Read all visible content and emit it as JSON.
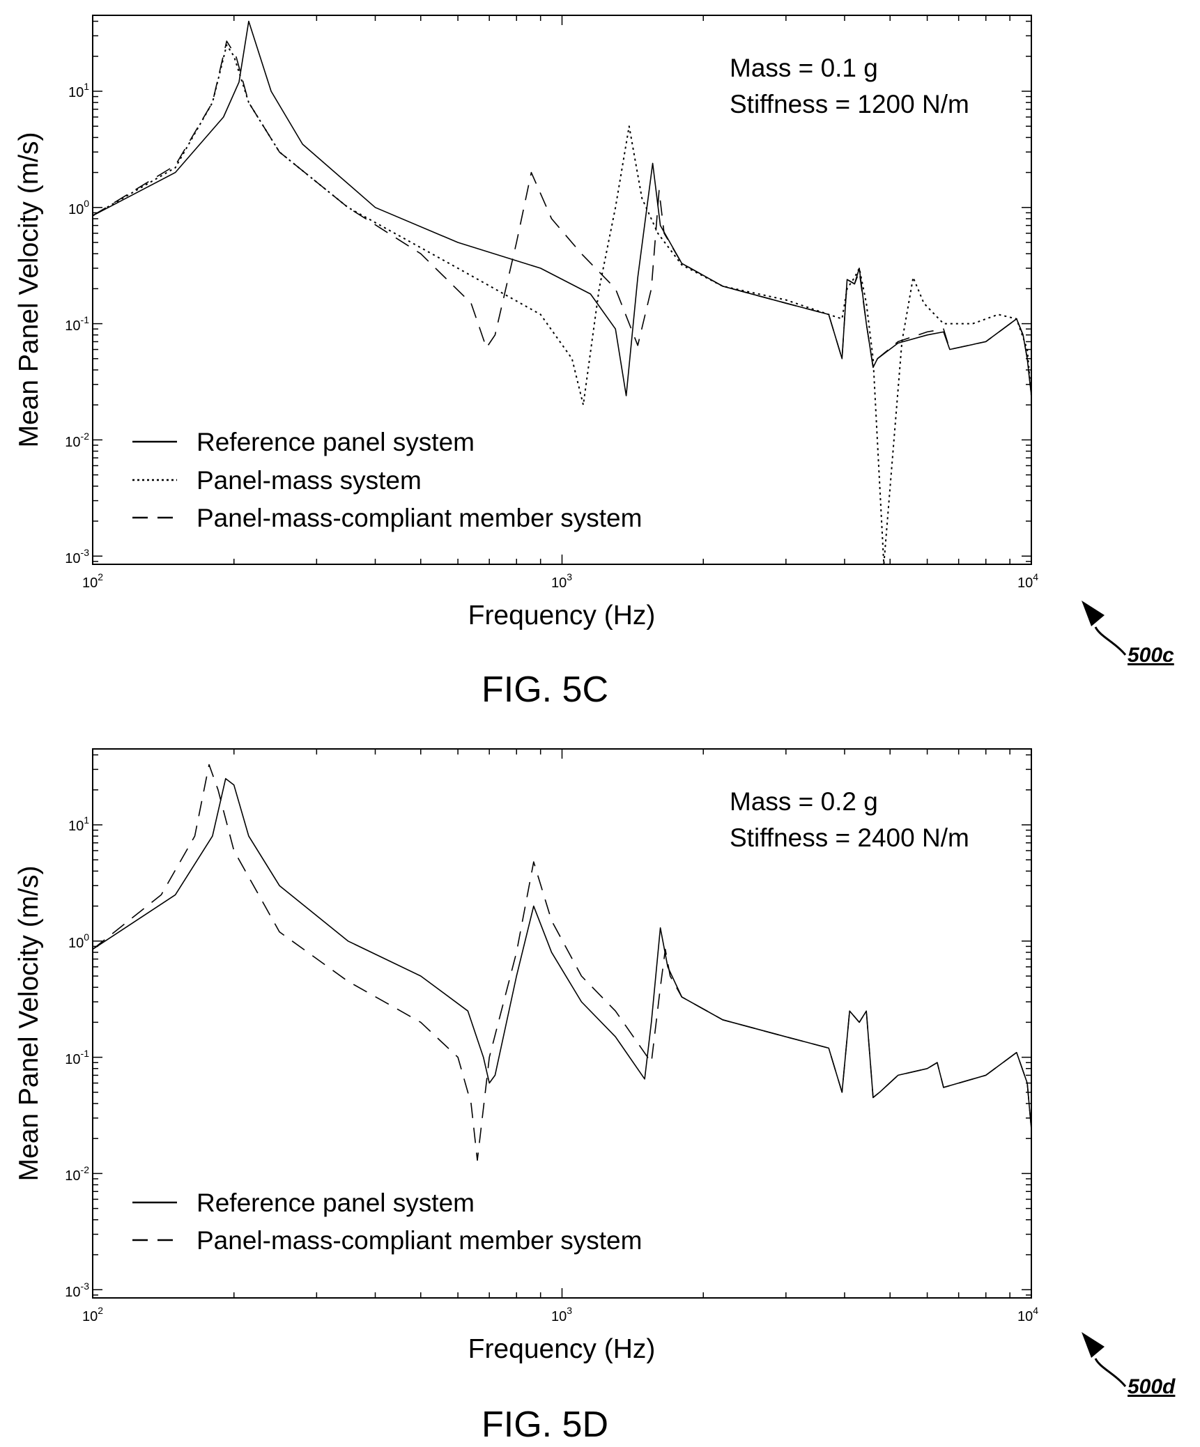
{
  "figures": [
    {
      "caption": "FIG. 5C",
      "reference": "500c",
      "annotation": [
        "Mass = 0.1 g",
        "Stiffness = 1200 N/m"
      ],
      "xlabel": "Frequency (Hz)",
      "ylabel": "Mean Panel Velocity (m/s)",
      "legend": [
        "Reference panel system",
        "Panel-mass system",
        "Panel-mass-compliant member system"
      ]
    },
    {
      "caption": "FIG. 5D",
      "reference": "500d",
      "annotation": [
        "Mass = 0.2 g",
        "Stiffness = 2400 N/m"
      ],
      "xlabel": "Frequency (Hz)",
      "ylabel": "Mean Panel Velocity (m/s)",
      "legend": [
        "Reference panel system",
        "Panel-mass-compliant member system"
      ]
    }
  ],
  "chart_data": [
    {
      "type": "line",
      "title": "",
      "xlabel": "Frequency (Hz)",
      "ylabel": "Mean Panel Velocity (m/s)",
      "xscale": "log",
      "yscale": "log",
      "xlim": [
        100,
        10000
      ],
      "ylim": [
        0.00085,
        45
      ],
      "xticks": [
        {
          "base": "10",
          "exp": "2"
        },
        {
          "base": "10",
          "exp": "3"
        },
        {
          "base": "10",
          "exp": "4"
        }
      ],
      "yticks": [
        {
          "base": "10",
          "exp": "-3"
        },
        {
          "base": "10",
          "exp": "-2"
        },
        {
          "base": "10",
          "exp": "-1"
        },
        {
          "base": "10",
          "exp": "0"
        },
        {
          "base": "10",
          "exp": "1"
        }
      ],
      "grid": false,
      "legend_position": "bottom-left",
      "series": [
        {
          "name": "Reference panel system",
          "style": "solid",
          "x": [
            100,
            150,
            190,
            205,
            215,
            240,
            280,
            400,
            600,
            900,
            1150,
            1300,
            1370,
            1450,
            1560,
            1620,
            1800,
            2200,
            3000,
            3700,
            3950,
            4050,
            4200,
            4300,
            4450,
            4600,
            4700,
            5200,
            6000,
            6500,
            6700,
            8000,
            9300,
            9600,
            9800,
            10000
          ],
          "y": [
            0.85,
            2.0,
            6.0,
            12.0,
            40.0,
            10.0,
            3.5,
            1.0,
            0.5,
            0.3,
            0.18,
            0.09,
            0.024,
            0.25,
            2.4,
            0.7,
            0.33,
            0.21,
            0.15,
            0.12,
            0.05,
            0.24,
            0.22,
            0.3,
            0.1,
            0.042,
            0.05,
            0.068,
            0.08,
            0.085,
            0.06,
            0.07,
            0.11,
            0.08,
            0.05,
            0.024
          ]
        },
        {
          "name": "Panel-mass system",
          "style": "dotted",
          "x": [
            100,
            150,
            180,
            193,
            200,
            215,
            250,
            350,
            600,
            900,
            1050,
            1110,
            1200,
            1300,
            1390,
            1480,
            1600,
            1800,
            2200,
            3000,
            3700,
            3950,
            4050,
            4200,
            4300,
            4450,
            4600,
            4850,
            5300,
            5600,
            5900,
            6500,
            7500,
            8500,
            9300,
            9800,
            10000
          ],
          "y": [
            0.85,
            2.2,
            8.0,
            25.0,
            20.0,
            8.0,
            3.0,
            1.0,
            0.3,
            0.12,
            0.05,
            0.02,
            0.2,
            1.0,
            5.0,
            1.2,
            0.6,
            0.32,
            0.21,
            0.16,
            0.12,
            0.11,
            0.2,
            0.25,
            0.3,
            0.15,
            0.05,
            0.00085,
            0.07,
            0.25,
            0.15,
            0.1,
            0.1,
            0.12,
            0.11,
            0.06,
            0.024
          ]
        },
        {
          "name": "Panel-mass-compliant member system",
          "style": "dashed",
          "x": [
            100,
            150,
            180,
            193,
            202,
            215,
            250,
            350,
            500,
            640,
            690,
            720,
            800,
            860,
            950,
            1100,
            1300,
            1450,
            1550,
            1610,
            1650,
            1800,
            2200,
            3000,
            3700,
            3950,
            4050,
            4200,
            4300,
            4450,
            4600,
            4700,
            5200,
            6000,
            6500,
            6700,
            8000,
            9300,
            9600,
            9800,
            10000
          ],
          "y": [
            0.85,
            2.3,
            8.0,
            27.0,
            20.0,
            8.0,
            3.0,
            1.0,
            0.4,
            0.15,
            0.062,
            0.08,
            0.5,
            2.0,
            0.8,
            0.4,
            0.2,
            0.065,
            0.2,
            1.4,
            0.6,
            0.33,
            0.21,
            0.15,
            0.12,
            0.05,
            0.24,
            0.22,
            0.28,
            0.1,
            0.042,
            0.05,
            0.07,
            0.085,
            0.09,
            0.06,
            0.07,
            0.11,
            0.08,
            0.05,
            0.024
          ]
        }
      ]
    },
    {
      "type": "line",
      "title": "",
      "xlabel": "Frequency (Hz)",
      "ylabel": "Mean Panel Velocity (m/s)",
      "xscale": "log",
      "yscale": "log",
      "xlim": [
        100,
        10000
      ],
      "ylim": [
        0.00085,
        45
      ],
      "xticks": [
        {
          "base": "10",
          "exp": "2"
        },
        {
          "base": "10",
          "exp": "3"
        },
        {
          "base": "10",
          "exp": "4"
        }
      ],
      "yticks": [
        {
          "base": "10",
          "exp": "-3"
        },
        {
          "base": "10",
          "exp": "-2"
        },
        {
          "base": "10",
          "exp": "-1"
        },
        {
          "base": "10",
          "exp": "0"
        },
        {
          "base": "10",
          "exp": "1"
        }
      ],
      "grid": false,
      "legend_position": "bottom-left",
      "series": [
        {
          "name": "Reference panel system",
          "style": "solid",
          "x": [
            100,
            150,
            180,
            192,
            200,
            215,
            250,
            350,
            500,
            630,
            680,
            700,
            720,
            800,
            870,
            950,
            1100,
            1300,
            1500,
            1550,
            1620,
            1680,
            1800,
            2200,
            3000,
            3700,
            3950,
            4100,
            4300,
            4450,
            4600,
            4750,
            5200,
            6000,
            6300,
            6500,
            8000,
            9300,
            9800,
            10000
          ],
          "y": [
            0.85,
            2.5,
            8.0,
            25.0,
            22.0,
            8.0,
            3.0,
            1.0,
            0.5,
            0.25,
            0.1,
            0.06,
            0.07,
            0.5,
            2.0,
            0.8,
            0.3,
            0.15,
            0.065,
            0.2,
            1.3,
            0.6,
            0.33,
            0.21,
            0.15,
            0.12,
            0.05,
            0.25,
            0.2,
            0.25,
            0.045,
            0.05,
            0.07,
            0.08,
            0.09,
            0.055,
            0.07,
            0.11,
            0.06,
            0.024
          ]
        },
        {
          "name": "Panel-mass-compliant member system",
          "style": "dashed",
          "x": [
            100,
            140,
            165,
            177,
            185,
            200,
            250,
            350,
            500,
            600,
            640,
            660,
            700,
            800,
            870,
            950,
            1100,
            1300,
            1550,
            1620,
            1660,
            1700,
            1800,
            2200,
            3000,
            3700,
            3950,
            4100,
            4300,
            4450,
            4600,
            4750,
            5200,
            6000,
            6300,
            6500,
            8000,
            9300,
            9800,
            10000
          ],
          "y": [
            0.85,
            2.5,
            8.0,
            33.0,
            20.0,
            6.0,
            1.2,
            0.45,
            0.2,
            0.1,
            0.04,
            0.013,
            0.1,
            0.8,
            4.8,
            1.5,
            0.5,
            0.25,
            0.09,
            0.4,
            0.85,
            0.5,
            0.33,
            0.21,
            0.15,
            0.12,
            0.05,
            0.25,
            0.2,
            0.25,
            0.045,
            0.05,
            0.07,
            0.08,
            0.09,
            0.055,
            0.07,
            0.11,
            0.06,
            0.024
          ]
        }
      ]
    }
  ]
}
